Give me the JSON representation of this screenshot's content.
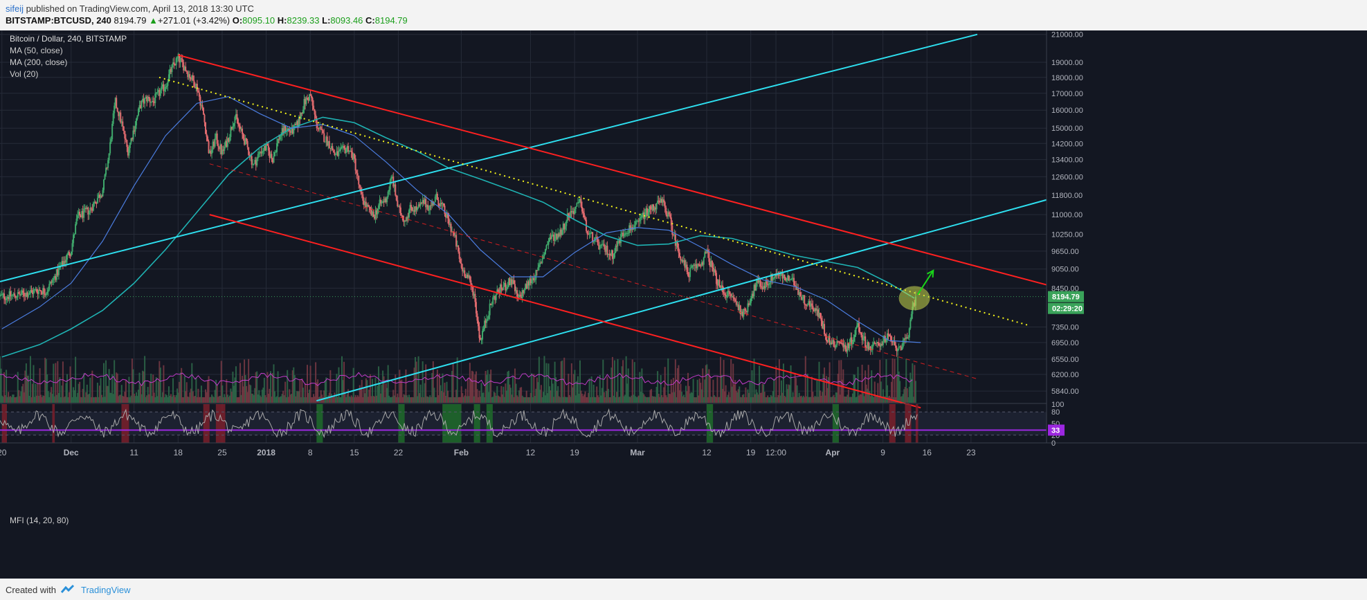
{
  "header": {
    "author": "sifeij",
    "published_text": "published on TradingView.com, April 13, 2018 13:30 UTC",
    "symbol": "BITSTAMP:BTCUSD, 240",
    "price": "8194.79",
    "change": "+271.01 (+3.42%)",
    "o_label": "O:",
    "o_value": "8095.10",
    "h_label": "H:",
    "h_value": "8239.33",
    "l_label": "L:",
    "l_value": "8093.46",
    "c_label": "C:",
    "c_value": "8194.79"
  },
  "legend": {
    "title": "Bitcoin / Dollar, 240, BITSTAMP",
    "ma50": "MA (50, close)",
    "ma200": "MA (200, close)",
    "vol": "Vol (20)",
    "mfi": "MFI (14, 20, 80)"
  },
  "footer": {
    "created_with": "Created with",
    "brand": "TradingView"
  },
  "colors": {
    "background": "#131722",
    "up_candle": "#3fa86b",
    "down_candle": "#e06a6e",
    "channel": "#ff2020",
    "trendline_up": "#2ee0f0",
    "dotted_trend": "#f6f61a",
    "ma50": "#4b7de0",
    "ma200": "#1fb3b3",
    "mfi_line": "#a9a9a9",
    "mfi_mid_line": "#9c27e0",
    "volume_ma": "#c23bc9",
    "price_badge": "#3aa35a",
    "arrow": "#19d419"
  },
  "chart_data": {
    "type": "candlestick",
    "y_axis_scale": "log",
    "y_tick_labels": [
      "21000.00",
      "19000.00",
      "18000.00",
      "17000.00",
      "16000.00",
      "15000.00",
      "14200.00",
      "13400.00",
      "12600.00",
      "11800.00",
      "11000.00",
      "10250.00",
      "9650.00",
      "9050.00",
      "8450.00",
      "7350.00",
      "6950.00",
      "6550.00",
      "6200.00",
      "5840.00"
    ],
    "y_range": [
      5600,
      21300
    ],
    "x_tick_labels": [
      "20",
      "Dec",
      "11",
      "18",
      "25",
      "2018",
      "8",
      "15",
      "22",
      "Feb",
      "12",
      "19",
      "Mar",
      "12",
      "19",
      "12:00",
      "Apr",
      "9",
      "16",
      "23"
    ],
    "x_tick_values": [
      -11,
      0,
      10,
      17,
      24,
      31,
      38,
      45,
      52,
      62,
      73,
      80,
      90,
      101,
      108,
      112,
      121,
      129,
      136,
      143
    ],
    "x_unit": "days since Dec 1, 2017",
    "x_range": [
      -11.3,
      155
    ],
    "current_price_label": "8194.79",
    "countdown_label": "02:29:20",
    "close_path": [
      {
        "x": -11,
        "c": 8200
      },
      {
        "x": -8,
        "c": 8250
      },
      {
        "x": -5,
        "c": 8400
      },
      {
        "x": -4,
        "c": 8350
      },
      {
        "x": -2,
        "c": 9000
      },
      {
        "x": 0,
        "c": 9700
      },
      {
        "x": 1,
        "c": 10900
      },
      {
        "x": 3,
        "c": 11200
      },
      {
        "x": 4,
        "c": 11600
      },
      {
        "x": 5,
        "c": 12000
      },
      {
        "x": 6,
        "c": 13600
      },
      {
        "x": 7,
        "c": 16500
      },
      {
        "x": 8,
        "c": 15300
      },
      {
        "x": 9,
        "c": 13800
      },
      {
        "x": 11,
        "c": 16300
      },
      {
        "x": 12,
        "c": 16700
      },
      {
        "x": 13,
        "c": 16500
      },
      {
        "x": 14,
        "c": 17000
      },
      {
        "x": 15,
        "c": 17500
      },
      {
        "x": 16,
        "c": 18600
      },
      {
        "x": 17,
        "c": 19300
      },
      {
        "x": 18,
        "c": 18700
      },
      {
        "x": 19,
        "c": 18000
      },
      {
        "x": 20,
        "c": 17400
      },
      {
        "x": 21,
        "c": 15800
      },
      {
        "x": 22,
        "c": 13600
      },
      {
        "x": 23,
        "c": 14500
      },
      {
        "x": 24,
        "c": 13700
      },
      {
        "x": 25,
        "c": 14500
      },
      {
        "x": 26,
        "c": 15700
      },
      {
        "x": 27,
        "c": 14800
      },
      {
        "x": 28,
        "c": 14000
      },
      {
        "x": 29,
        "c": 13100
      },
      {
        "x": 30,
        "c": 13800
      },
      {
        "x": 31,
        "c": 14000
      },
      {
        "x": 32,
        "c": 13400
      },
      {
        "x": 33,
        "c": 14500
      },
      {
        "x": 34,
        "c": 15000
      },
      {
        "x": 35,
        "c": 14800
      },
      {
        "x": 36,
        "c": 15200
      },
      {
        "x": 37,
        "c": 16400
      },
      {
        "x": 38,
        "c": 16900
      },
      {
        "x": 39,
        "c": 15200
      },
      {
        "x": 40,
        "c": 14600
      },
      {
        "x": 41,
        "c": 14200
      },
      {
        "x": 42,
        "c": 13600
      },
      {
        "x": 43,
        "c": 13800
      },
      {
        "x": 44,
        "c": 14000
      },
      {
        "x": 45,
        "c": 13400
      },
      {
        "x": 46,
        "c": 11800
      },
      {
        "x": 47,
        "c": 11300
      },
      {
        "x": 48,
        "c": 10900
      },
      {
        "x": 49,
        "c": 11400
      },
      {
        "x": 50,
        "c": 11600
      },
      {
        "x": 51,
        "c": 12600
      },
      {
        "x": 52,
        "c": 11200
      },
      {
        "x": 53,
        "c": 10800
      },
      {
        "x": 54,
        "c": 11300
      },
      {
        "x": 55,
        "c": 11200
      },
      {
        "x": 56,
        "c": 11500
      },
      {
        "x": 57,
        "c": 11300
      },
      {
        "x": 58,
        "c": 11700
      },
      {
        "x": 59,
        "c": 11300
      },
      {
        "x": 60,
        "c": 10700
      },
      {
        "x": 61,
        "c": 10100
      },
      {
        "x": 62,
        "c": 9100
      },
      {
        "x": 63,
        "c": 8800
      },
      {
        "x": 64,
        "c": 8300
      },
      {
        "x": 65,
        "c": 7000
      },
      {
        "x": 66,
        "c": 7600
      },
      {
        "x": 67,
        "c": 8100
      },
      {
        "x": 68,
        "c": 8400
      },
      {
        "x": 69,
        "c": 8500
      },
      {
        "x": 70,
        "c": 8700
      },
      {
        "x": 71,
        "c": 8100
      },
      {
        "x": 72,
        "c": 8400
      },
      {
        "x": 73,
        "c": 8700
      },
      {
        "x": 74,
        "c": 8900
      },
      {
        "x": 75,
        "c": 9500
      },
      {
        "x": 76,
        "c": 10100
      },
      {
        "x": 77,
        "c": 10200
      },
      {
        "x": 78,
        "c": 10400
      },
      {
        "x": 79,
        "c": 11000
      },
      {
        "x": 80,
        "c": 11200
      },
      {
        "x": 81,
        "c": 11500
      },
      {
        "x": 82,
        "c": 10300
      },
      {
        "x": 83,
        "c": 10100
      },
      {
        "x": 84,
        "c": 9800
      },
      {
        "x": 85,
        "c": 9700
      },
      {
        "x": 86,
        "c": 9500
      },
      {
        "x": 87,
        "c": 10000
      },
      {
        "x": 88,
        "c": 10400
      },
      {
        "x": 89,
        "c": 10500
      },
      {
        "x": 90,
        "c": 10600
      },
      {
        "x": 91,
        "c": 11000
      },
      {
        "x": 92,
        "c": 11200
      },
      {
        "x": 93,
        "c": 11400
      },
      {
        "x": 94,
        "c": 11500
      },
      {
        "x": 95,
        "c": 10900
      },
      {
        "x": 96,
        "c": 10000
      },
      {
        "x": 97,
        "c": 9400
      },
      {
        "x": 98,
        "c": 8900
      },
      {
        "x": 99,
        "c": 9100
      },
      {
        "x": 100,
        "c": 9200
      },
      {
        "x": 101,
        "c": 9600
      },
      {
        "x": 102,
        "c": 9000
      },
      {
        "x": 103,
        "c": 8500
      },
      {
        "x": 104,
        "c": 8300
      },
      {
        "x": 105,
        "c": 8200
      },
      {
        "x": 106,
        "c": 7900
      },
      {
        "x": 107,
        "c": 7700
      },
      {
        "x": 108,
        "c": 8200
      },
      {
        "x": 109,
        "c": 8600
      },
      {
        "x": 110,
        "c": 8500
      },
      {
        "x": 111,
        "c": 8700
      },
      {
        "x": 112,
        "c": 8900
      },
      {
        "x": 113,
        "c": 8800
      },
      {
        "x": 114,
        "c": 8700
      },
      {
        "x": 115,
        "c": 8600
      },
      {
        "x": 116,
        "c": 8200
      },
      {
        "x": 117,
        "c": 8000
      },
      {
        "x": 118,
        "c": 7900
      },
      {
        "x": 119,
        "c": 7600
      },
      {
        "x": 120,
        "c": 7100
      },
      {
        "x": 121,
        "c": 6900
      },
      {
        "x": 122,
        "c": 7000
      },
      {
        "x": 123,
        "c": 6800
      },
      {
        "x": 124,
        "c": 7000
      },
      {
        "x": 125,
        "c": 7400
      },
      {
        "x": 126,
        "c": 7000
      },
      {
        "x": 127,
        "c": 6800
      },
      {
        "x": 128,
        "c": 6900
      },
      {
        "x": 129,
        "c": 7000
      },
      {
        "x": 130,
        "c": 7100
      },
      {
        "x": 131,
        "c": 6800
      },
      {
        "x": 132,
        "c": 6900
      },
      {
        "x": 133,
        "c": 7000
      },
      {
        "x": 133.5,
        "c": 7800
      },
      {
        "x": 134.3,
        "c": 8194.79
      }
    ],
    "ma50_path": [
      {
        "x": -11,
        "v": 7300
      },
      {
        "x": -5,
        "v": 7900
      },
      {
        "x": 0,
        "v": 8600
      },
      {
        "x": 5,
        "v": 10000
      },
      {
        "x": 10,
        "v": 12200
      },
      {
        "x": 15,
        "v": 14600
      },
      {
        "x": 20,
        "v": 16400
      },
      {
        "x": 25,
        "v": 16800
      },
      {
        "x": 30,
        "v": 15800
      },
      {
        "x": 35,
        "v": 15000
      },
      {
        "x": 40,
        "v": 15200
      },
      {
        "x": 45,
        "v": 14600
      },
      {
        "x": 50,
        "v": 13300
      },
      {
        "x": 55,
        "v": 12000
      },
      {
        "x": 60,
        "v": 11000
      },
      {
        "x": 65,
        "v": 9700
      },
      {
        "x": 70,
        "v": 8800
      },
      {
        "x": 75,
        "v": 8800
      },
      {
        "x": 80,
        "v": 9600
      },
      {
        "x": 85,
        "v": 10300
      },
      {
        "x": 90,
        "v": 10500
      },
      {
        "x": 95,
        "v": 10400
      },
      {
        "x": 100,
        "v": 9800
      },
      {
        "x": 105,
        "v": 9200
      },
      {
        "x": 110,
        "v": 8700
      },
      {
        "x": 115,
        "v": 8500
      },
      {
        "x": 120,
        "v": 8100
      },
      {
        "x": 125,
        "v": 7500
      },
      {
        "x": 130,
        "v": 7000
      },
      {
        "x": 135,
        "v": 6950
      }
    ],
    "ma200_path": [
      {
        "x": -11,
        "v": 6600
      },
      {
        "x": -5,
        "v": 6900
      },
      {
        "x": 0,
        "v": 7300
      },
      {
        "x": 5,
        "v": 7800
      },
      {
        "x": 10,
        "v": 8600
      },
      {
        "x": 15,
        "v": 9700
      },
      {
        "x": 20,
        "v": 11100
      },
      {
        "x": 25,
        "v": 12700
      },
      {
        "x": 30,
        "v": 14000
      },
      {
        "x": 35,
        "v": 15000
      },
      {
        "x": 40,
        "v": 15600
      },
      {
        "x": 45,
        "v": 15300
      },
      {
        "x": 50,
        "v": 14500
      },
      {
        "x": 55,
        "v": 13800
      },
      {
        "x": 60,
        "v": 13000
      },
      {
        "x": 65,
        "v": 12500
      },
      {
        "x": 70,
        "v": 12000
      },
      {
        "x": 75,
        "v": 11500
      },
      {
        "x": 80,
        "v": 10800
      },
      {
        "x": 85,
        "v": 10200
      },
      {
        "x": 90,
        "v": 9850
      },
      {
        "x": 95,
        "v": 9900
      },
      {
        "x": 100,
        "v": 10200
      },
      {
        "x": 105,
        "v": 10100
      },
      {
        "x": 110,
        "v": 9800
      },
      {
        "x": 115,
        "v": 9500
      },
      {
        "x": 120,
        "v": 9300
      },
      {
        "x": 125,
        "v": 9100
      },
      {
        "x": 130,
        "v": 8600
      },
      {
        "x": 134,
        "v": 8150
      }
    ],
    "channel_top": [
      {
        "x": 17,
        "v": 19500
      },
      {
        "x": 155,
        "v": 8550
      }
    ],
    "channel_bottom": [
      {
        "x": 22,
        "v": 11000
      },
      {
        "x": 135,
        "v": 5500
      }
    ],
    "channel_mid_dashed": [
      {
        "x": 22,
        "v": 13200
      },
      {
        "x": 144,
        "v": 6100
      }
    ],
    "uptrend_1": [
      {
        "x": -11.3,
        "v": 8650
      },
      {
        "x": 144,
        "v": 21000
      }
    ],
    "uptrend_2": [
      {
        "x": 39,
        "v": 5640
      },
      {
        "x": 155,
        "v": 11600
      }
    ],
    "dotted_downtrend": [
      {
        "x": 14,
        "v": 18000
      },
      {
        "x": 152,
        "v": 7400
      }
    ],
    "highlight_ellipse_center": {
      "x": 134,
      "v": 8150
    },
    "breakout_arrow": [
      {
        "x": 134.5,
        "v": 8250
      },
      {
        "x": 137,
        "v": 9000
      }
    ],
    "mfi": {
      "y_tick_labels": [
        "100",
        "80",
        "50",
        "20",
        "0"
      ],
      "y_tick_values": [
        100,
        80,
        50,
        20,
        0
      ],
      "current_label": "33",
      "current_value": 33
    }
  }
}
